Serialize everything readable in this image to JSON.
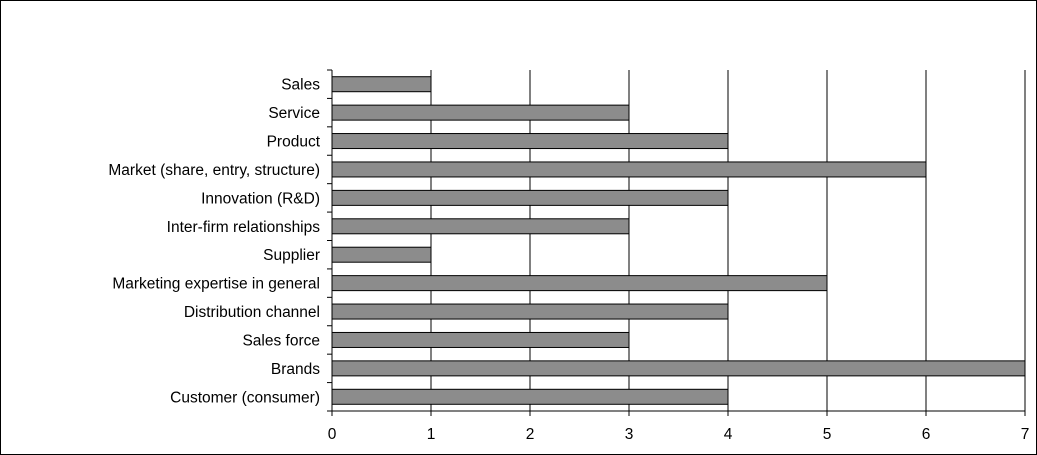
{
  "chart_data": {
    "type": "bar",
    "orientation": "horizontal",
    "categories": [
      "Sales",
      "Service",
      "Product",
      "Market (share, entry, structure)",
      "Innovation (R&D)",
      "Inter-firm relationships",
      "Supplier",
      "Marketing expertise in general",
      "Distribution channel",
      "Sales force",
      "Brands",
      "Customer (consumer)"
    ],
    "values": [
      1,
      3,
      4,
      6,
      4,
      3,
      1,
      5,
      4,
      3,
      7,
      4
    ],
    "xlim": [
      0,
      7
    ],
    "xticks": [
      "0",
      "1",
      "2",
      "3",
      "4",
      "5",
      "6",
      "7"
    ],
    "grid": "vertical",
    "bar_color": "#8c8c8c",
    "title": "",
    "xlabel": "",
    "ylabel": ""
  }
}
